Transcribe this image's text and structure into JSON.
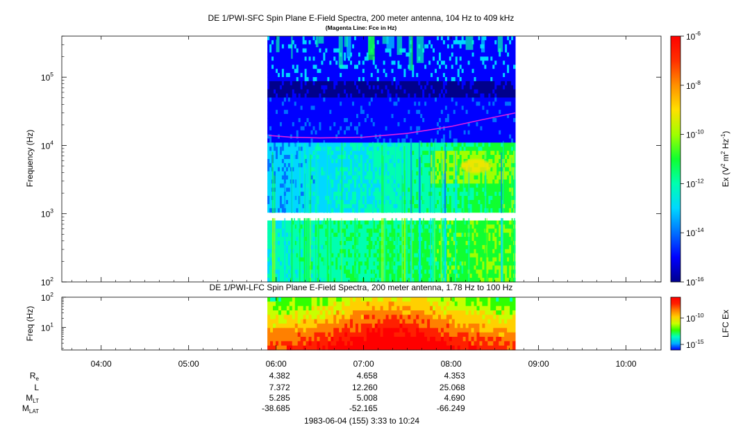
{
  "chart_data": [
    {
      "type": "heatmap",
      "name": "SFC spectrogram",
      "title": "DE 1/PWI-SFC  Spin Plane E-Field Spectra, 200 meter antenna, 104 Hz to 409 kHz",
      "subtitle": "(Magenta Line: Fce in Hz)",
      "ylabel": "Frequency (Hz)",
      "yscale": "log",
      "ylim": [
        100,
        400000
      ],
      "yticks": [
        {
          "value": 100,
          "base": "10",
          "exp": "2"
        },
        {
          "value": 1000,
          "base": "10",
          "exp": "3"
        },
        {
          "value": 10000,
          "base": "10",
          "exp": "4"
        },
        {
          "value": 100000,
          "base": "10",
          "exp": "5"
        }
      ],
      "data_time_range": [
        "05:54",
        "08:44"
      ],
      "fce_line_color": "#e020e0",
      "fce_hz": [
        {
          "t": "05:55",
          "f": 14000
        },
        {
          "t": "06:10",
          "f": 13200
        },
        {
          "t": "06:30",
          "f": 12900
        },
        {
          "t": "07:00",
          "f": 13200
        },
        {
          "t": "07:30",
          "f": 15000
        },
        {
          "t": "08:00",
          "f": 19000
        },
        {
          "t": "08:20",
          "f": 23500
        },
        {
          "t": "08:44",
          "f": 30000
        }
      ],
      "colorbar": {
        "label_base": "Ex (V",
        "label_sup1": "2",
        "label_mid": " m",
        "label_sup2": "2",
        "label_mid2": " Hz",
        "label_sup3": "-1",
        "label_end": ")",
        "scale": "log",
        "range": [
          1e-16,
          1e-06
        ],
        "ticks": [
          {
            "value": 1e-16,
            "base": "10",
            "exp": "-16"
          },
          {
            "value": 1e-14,
            "base": "10",
            "exp": "-14"
          },
          {
            "value": 1e-12,
            "base": "10",
            "exp": "-12"
          },
          {
            "value": 1e-10,
            "base": "10",
            "exp": "-10"
          },
          {
            "value": 1e-08,
            "base": "10",
            "exp": "-8"
          },
          {
            "value": 1e-06,
            "base": "10",
            "exp": "-6"
          }
        ],
        "colors": [
          "#00008c",
          "#0000ff",
          "#0070ff",
          "#00d8ff",
          "#00ffb0",
          "#10ff30",
          "#a0ff00",
          "#ffe000",
          "#ff9000",
          "#ff3000",
          "#ff0000"
        ]
      }
    },
    {
      "type": "heatmap",
      "name": "LFC spectrogram",
      "title": "DE 1/PWI-LFC  Spin Plane E-Field Spectra, 200 meter antenna, 1.78 Hz to 100 Hz",
      "ylabel": "Freq (Hz)",
      "yscale": "log",
      "ylim": [
        1.78,
        100
      ],
      "yticks": [
        {
          "value": 10,
          "base": "10",
          "exp": "1"
        },
        {
          "value": 100,
          "base": "10",
          "exp": "2"
        }
      ],
      "data_time_range": [
        "05:54",
        "08:44"
      ],
      "colorbar": {
        "label": "LFC Ex",
        "scale": "log",
        "ticks": [
          {
            "value": 1e-15,
            "base": "10",
            "exp": "-15"
          },
          {
            "value": 1e-10,
            "base": "10",
            "exp": "-10"
          }
        ],
        "colors": [
          "#0000ff",
          "#00b0ff",
          "#00ffc0",
          "#30ff00",
          "#c8ff00",
          "#ffd000",
          "#ff8000",
          "#ff2000",
          "#ff0000"
        ]
      }
    }
  ],
  "time_axis": {
    "start": "03:33",
    "end": "10:24",
    "ticks": [
      "04:00",
      "05:00",
      "06:00",
      "07:00",
      "08:00",
      "09:00",
      "10:00"
    ]
  },
  "ephemeris": {
    "rows": [
      {
        "label": "R",
        "sub": "e",
        "values": [
          "4.382",
          "4.658",
          "4.353"
        ]
      },
      {
        "label": "L",
        "sub": "",
        "values": [
          "7.372",
          "12.260",
          "25.068"
        ]
      },
      {
        "label": "M",
        "sub": "LT",
        "values": [
          "5.285",
          "5.008",
          "4.690"
        ]
      },
      {
        "label": "M",
        "sub": "LAT",
        "values": [
          "-38.685",
          "-52.165",
          "-66.249"
        ]
      }
    ],
    "times": [
      "06:00",
      "07:00",
      "08:00"
    ]
  },
  "date_label": "1983-06-04 (155) 3:33 to 10:24"
}
